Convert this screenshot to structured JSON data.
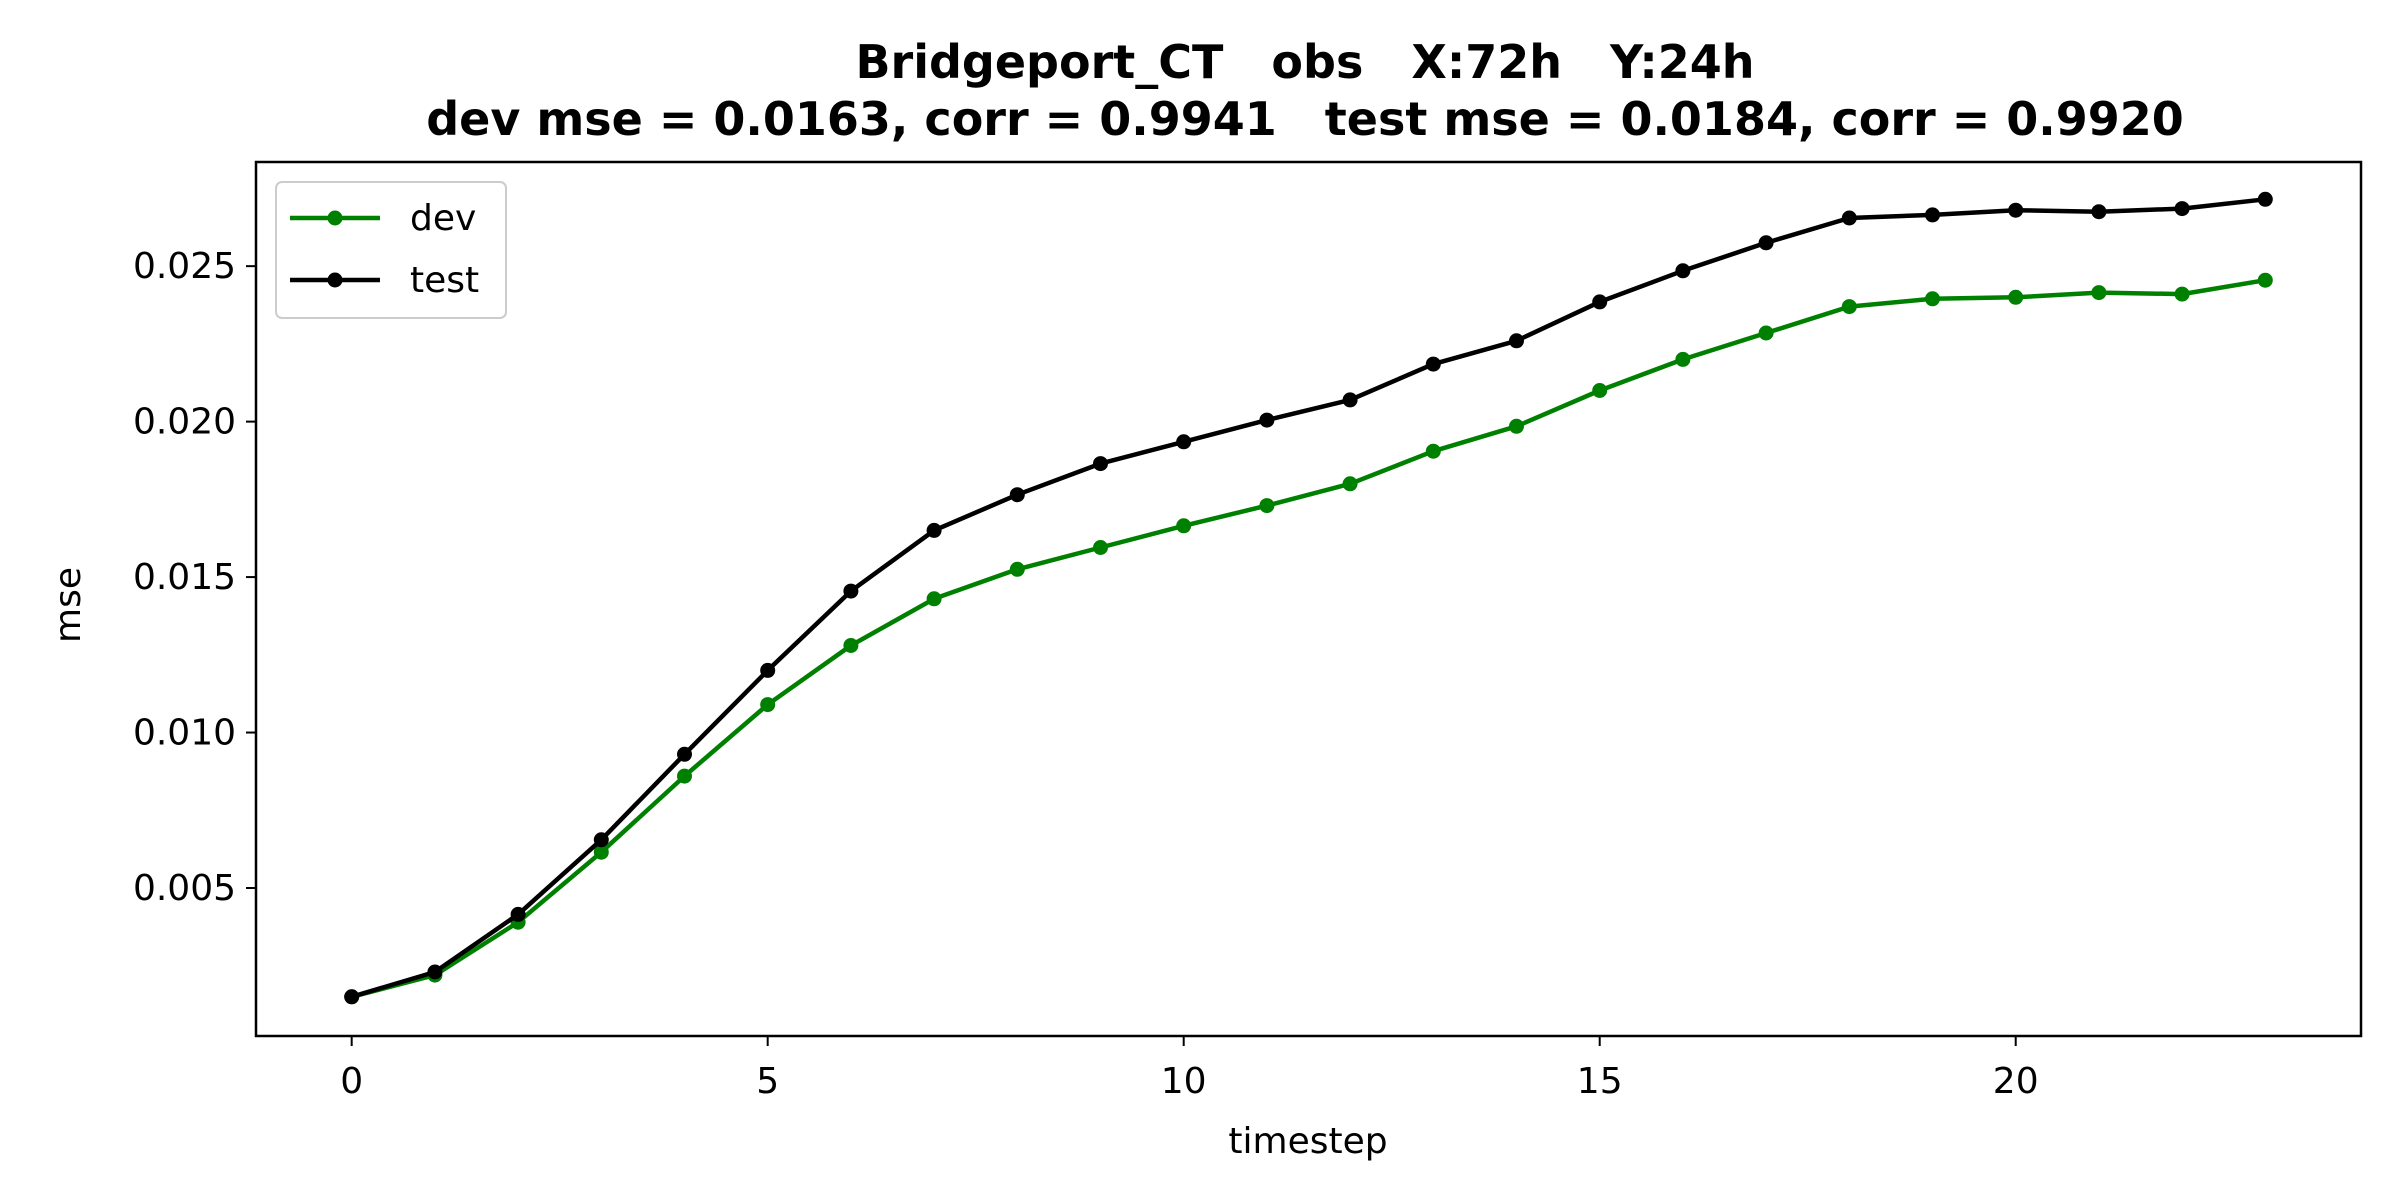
{
  "chart_data": {
    "type": "line",
    "title": "Bridgeport_CT   obs   X:72h   Y:24h",
    "subtitle": "dev mse = 0.0163, corr = 0.9941   test mse = 0.0184, corr = 0.9920",
    "xlabel": "timestep",
    "ylabel": "mse",
    "xlim": [
      -1.15,
      24.15
    ],
    "ylim": [
      0.00024,
      0.02835
    ],
    "xticks": [
      0,
      5,
      10,
      15,
      20
    ],
    "yticks": [
      0.005,
      0.01,
      0.015,
      0.02,
      0.025
    ],
    "ytick_labels": [
      "0.005",
      "0.010",
      "0.015",
      "0.020",
      "0.025"
    ],
    "grid": false,
    "legend_position": "upper-left",
    "x": [
      0,
      1,
      2,
      3,
      4,
      5,
      6,
      7,
      8,
      9,
      10,
      11,
      12,
      13,
      14,
      15,
      16,
      17,
      18,
      19,
      20,
      21,
      22,
      23
    ],
    "series": [
      {
        "name": "dev",
        "color": "#008000",
        "marker": "circle",
        "values": [
          0.0015,
          0.0022,
          0.0039,
          0.00615,
          0.0086,
          0.0109,
          0.0128,
          0.0143,
          0.01525,
          0.01595,
          0.01665,
          0.0173,
          0.018,
          0.01905,
          0.01985,
          0.021,
          0.022,
          0.02285,
          0.0237,
          0.02395,
          0.024,
          0.02415,
          0.0241,
          0.02455
        ]
      },
      {
        "name": "test",
        "color": "#000000",
        "marker": "circle",
        "values": [
          0.0015,
          0.0023,
          0.00415,
          0.00655,
          0.0093,
          0.012,
          0.01455,
          0.0165,
          0.01765,
          0.01865,
          0.01935,
          0.02005,
          0.0207,
          0.02185,
          0.0226,
          0.02385,
          0.02485,
          0.02575,
          0.02655,
          0.02665,
          0.0268,
          0.02675,
          0.02685,
          0.02715
        ]
      }
    ]
  }
}
